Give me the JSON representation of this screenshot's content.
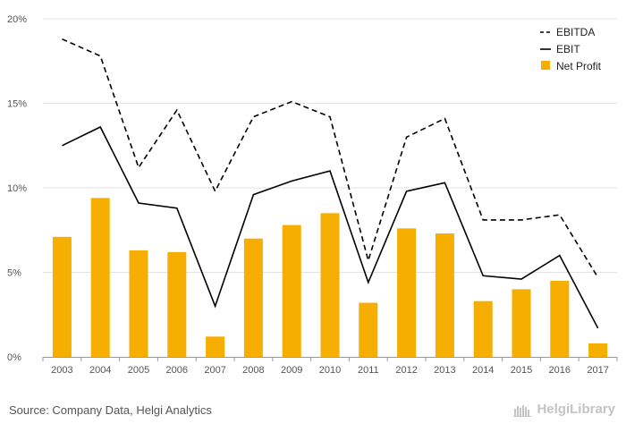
{
  "chart_data": {
    "type": "bar",
    "categories": [
      "2003",
      "2004",
      "2005",
      "2006",
      "2007",
      "2008",
      "2009",
      "2010",
      "2011",
      "2012",
      "2013",
      "2014",
      "2015",
      "2016",
      "2017"
    ],
    "series": [
      {
        "name": "EBITDA",
        "type": "line",
        "style": "dashed",
        "color": "#000000",
        "values": [
          18.8,
          17.8,
          11.2,
          14.6,
          9.8,
          14.2,
          15.1,
          14.2,
          5.7,
          13.0,
          14.1,
          8.1,
          8.1,
          8.4,
          4.7
        ]
      },
      {
        "name": "EBIT",
        "type": "line",
        "style": "solid",
        "color": "#000000",
        "values": [
          12.5,
          13.6,
          9.1,
          8.8,
          3.0,
          9.6,
          10.4,
          11.0,
          4.4,
          9.8,
          10.3,
          4.8,
          4.6,
          6.0,
          1.7
        ]
      },
      {
        "name": "Net Profit",
        "type": "bar",
        "color": "#f6ae00",
        "values": [
          7.1,
          9.4,
          6.3,
          6.2,
          1.2,
          7.0,
          7.8,
          8.5,
          3.2,
          7.6,
          7.3,
          3.3,
          4.0,
          4.5,
          0.8
        ]
      }
    ],
    "y_ticks": [
      "0%",
      "5%",
      "10%",
      "15%",
      "20%"
    ],
    "ylim": [
      0,
      20
    ],
    "grid": true,
    "legend_position": "top-right"
  },
  "footer": {
    "source": "Source: Company Data, Helgi Analytics",
    "brand": "HelgiLibrary"
  }
}
